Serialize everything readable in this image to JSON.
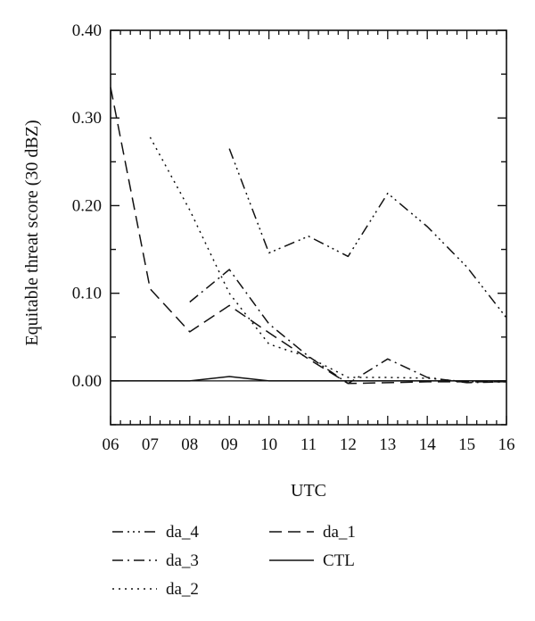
{
  "chart_data": {
    "type": "line",
    "xlabel": "UTC",
    "ylabel": "Equitable threat score (30 dBZ)",
    "x": [
      6,
      7,
      8,
      9,
      10,
      11,
      12,
      13,
      14,
      15,
      16
    ],
    "x_tick_labels": [
      "06",
      "07",
      "08",
      "09",
      "10",
      "11",
      "12",
      "13",
      "14",
      "15",
      "16"
    ],
    "xlim": [
      6,
      16
    ],
    "ylim": [
      -0.05,
      0.4
    ],
    "y_ticks": [
      0.0,
      0.1,
      0.2,
      0.3,
      0.4
    ],
    "y_tick_labels": [
      "0.00",
      "0.10",
      "0.20",
      "0.30",
      "0.40"
    ],
    "grid": false,
    "legend_position": "bottom",
    "series": [
      {
        "name": "da_4",
        "style": "dash-dot-dot-dot",
        "x": [
          9,
          10,
          11,
          12,
          13,
          14,
          15,
          16
        ],
        "y": [
          0.265,
          0.146,
          0.165,
          0.142,
          0.214,
          0.176,
          0.13,
          0.072
        ]
      },
      {
        "name": "da_3",
        "style": "dash-dot",
        "x": [
          8,
          9,
          10,
          11,
          12,
          13,
          14,
          15,
          16
        ],
        "y": [
          0.09,
          0.127,
          0.065,
          0.028,
          -0.003,
          0.025,
          0.004,
          -0.002,
          -0.001
        ]
      },
      {
        "name": "da_2",
        "style": "dotted",
        "x": [
          7,
          8,
          9,
          10,
          11,
          12,
          13,
          14,
          15,
          16
        ],
        "y": [
          0.278,
          0.195,
          0.1,
          0.042,
          0.027,
          0.004,
          0.004,
          0.003,
          -0.001,
          -0.001
        ]
      },
      {
        "name": "da_1",
        "style": "dashed",
        "x": [
          6,
          7,
          8,
          9,
          10,
          11,
          12,
          13,
          14,
          15,
          16
        ],
        "y": [
          0.335,
          0.105,
          0.056,
          0.086,
          0.055,
          0.025,
          -0.003,
          -0.002,
          -0.001,
          -0.001,
          -0.001
        ]
      },
      {
        "name": "CTL",
        "style": "solid",
        "x": [
          6,
          7,
          8,
          9,
          10,
          11,
          12,
          13,
          14,
          15,
          16
        ],
        "y": [
          0.0,
          0.0,
          0.0,
          0.005,
          0.0,
          0.0,
          0.0,
          0.0,
          0.0,
          0.0,
          0.0
        ]
      }
    ],
    "legend": {
      "entries": [
        {
          "label": "da_4",
          "series": "da_4"
        },
        {
          "label": "da_3",
          "series": "da_3"
        },
        {
          "label": "da_2",
          "series": "da_2"
        },
        {
          "label": "da_1",
          "series": "da_1"
        },
        {
          "label": "CTL",
          "series": "CTL"
        }
      ]
    },
    "colors": {
      "line": "#111111",
      "background": "#ffffff"
    }
  }
}
